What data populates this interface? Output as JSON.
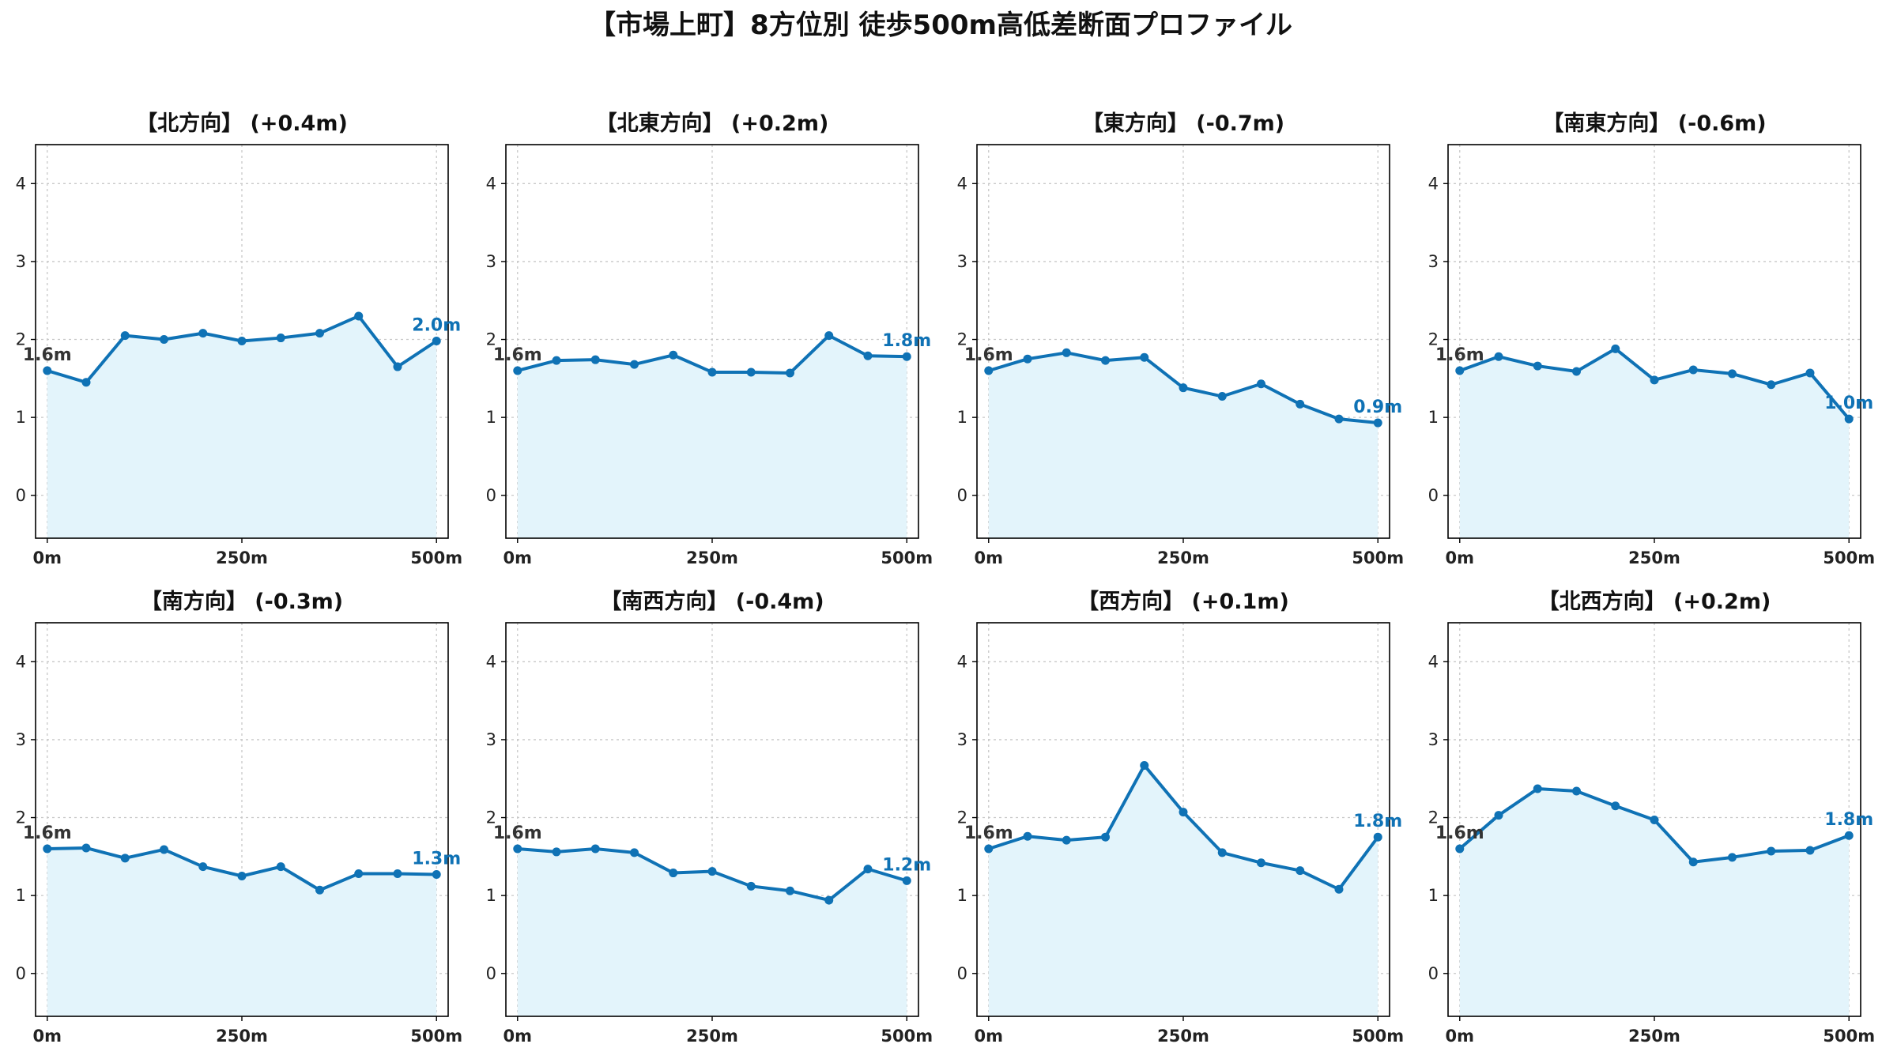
{
  "title": "【市場上町】8方位別 徒歩500m高低差断面プロファイル",
  "colors": {
    "line": "#0f72b5",
    "fill": "#e3f4fb",
    "grid": "#c8c8c8",
    "end_label": "#0f72b5",
    "start_label": "#333333"
  },
  "chart_data": [
    {
      "type": "area",
      "title": "【北方向】 (+0.4m)",
      "x": [
        0,
        50,
        100,
        150,
        200,
        250,
        300,
        350,
        400,
        450,
        500
      ],
      "values": [
        1.6,
        1.45,
        2.05,
        2.0,
        2.08,
        1.98,
        2.02,
        2.08,
        2.3,
        1.65,
        1.98
      ],
      "start_label": "1.6m",
      "end_label": "2.0m",
      "xticks": [
        0,
        250,
        500
      ],
      "xtick_labels": [
        "0m",
        "250m",
        "500m"
      ],
      "yticks": [
        0,
        1,
        2,
        3,
        4
      ],
      "ylim": [
        -0.55,
        4.5
      ],
      "xlim": [
        -15,
        515
      ],
      "grid": true
    },
    {
      "type": "area",
      "title": "【北東方向】 (+0.2m)",
      "x": [
        0,
        50,
        100,
        150,
        200,
        250,
        300,
        350,
        400,
        450,
        500
      ],
      "values": [
        1.6,
        1.73,
        1.74,
        1.68,
        1.8,
        1.58,
        1.58,
        1.57,
        2.05,
        1.79,
        1.78
      ],
      "start_label": "1.6m",
      "end_label": "1.8m",
      "xticks": [
        0,
        250,
        500
      ],
      "xtick_labels": [
        "0m",
        "250m",
        "500m"
      ],
      "yticks": [
        0,
        1,
        2,
        3,
        4
      ],
      "ylim": [
        -0.55,
        4.5
      ],
      "xlim": [
        -15,
        515
      ],
      "grid": true
    },
    {
      "type": "area",
      "title": "【東方向】 (-0.7m)",
      "x": [
        0,
        50,
        100,
        150,
        200,
        250,
        300,
        350,
        400,
        450,
        500
      ],
      "values": [
        1.6,
        1.75,
        1.83,
        1.73,
        1.77,
        1.38,
        1.27,
        1.43,
        1.17,
        0.98,
        0.93
      ],
      "start_label": "1.6m",
      "end_label": "0.9m",
      "xticks": [
        0,
        250,
        500
      ],
      "xtick_labels": [
        "0m",
        "250m",
        "500m"
      ],
      "yticks": [
        0,
        1,
        2,
        3,
        4
      ],
      "ylim": [
        -0.55,
        4.5
      ],
      "xlim": [
        -15,
        515
      ],
      "grid": true
    },
    {
      "type": "area",
      "title": "【南東方向】 (-0.6m)",
      "x": [
        0,
        50,
        100,
        150,
        200,
        250,
        300,
        350,
        400,
        450,
        500
      ],
      "values": [
        1.6,
        1.78,
        1.66,
        1.59,
        1.88,
        1.48,
        1.61,
        1.56,
        1.42,
        1.57,
        0.98
      ],
      "start_label": "1.6m",
      "end_label": "1.0m",
      "xticks": [
        0,
        250,
        500
      ],
      "xtick_labels": [
        "0m",
        "250m",
        "500m"
      ],
      "yticks": [
        0,
        1,
        2,
        3,
        4
      ],
      "ylim": [
        -0.55,
        4.5
      ],
      "xlim": [
        -15,
        515
      ],
      "grid": true
    },
    {
      "type": "area",
      "title": "【南方向】 (-0.3m)",
      "x": [
        0,
        50,
        100,
        150,
        200,
        250,
        300,
        350,
        400,
        450,
        500
      ],
      "values": [
        1.6,
        1.61,
        1.48,
        1.59,
        1.37,
        1.25,
        1.37,
        1.07,
        1.28,
        1.28,
        1.27
      ],
      "start_label": "1.6m",
      "end_label": "1.3m",
      "xticks": [
        0,
        250,
        500
      ],
      "xtick_labels": [
        "0m",
        "250m",
        "500m"
      ],
      "yticks": [
        0,
        1,
        2,
        3,
        4
      ],
      "ylim": [
        -0.55,
        4.5
      ],
      "xlim": [
        -15,
        515
      ],
      "grid": true
    },
    {
      "type": "area",
      "title": "【南西方向】 (-0.4m)",
      "x": [
        0,
        50,
        100,
        150,
        200,
        250,
        300,
        350,
        400,
        450,
        500
      ],
      "values": [
        1.6,
        1.56,
        1.6,
        1.55,
        1.29,
        1.31,
        1.12,
        1.06,
        0.94,
        1.34,
        1.19
      ],
      "start_label": "1.6m",
      "end_label": "1.2m",
      "xticks": [
        0,
        250,
        500
      ],
      "xtick_labels": [
        "0m",
        "250m",
        "500m"
      ],
      "yticks": [
        0,
        1,
        2,
        3,
        4
      ],
      "ylim": [
        -0.55,
        4.5
      ],
      "xlim": [
        -15,
        515
      ],
      "grid": true
    },
    {
      "type": "area",
      "title": "【西方向】 (+0.1m)",
      "x": [
        0,
        50,
        100,
        150,
        200,
        250,
        300,
        350,
        400,
        450,
        500
      ],
      "values": [
        1.6,
        1.76,
        1.71,
        1.75,
        2.67,
        2.07,
        1.55,
        1.42,
        1.32,
        1.08,
        1.75
      ],
      "start_label": "1.6m",
      "end_label": "1.8m",
      "xticks": [
        0,
        250,
        500
      ],
      "xtick_labels": [
        "0m",
        "250m",
        "500m"
      ],
      "yticks": [
        0,
        1,
        2,
        3,
        4
      ],
      "ylim": [
        -0.55,
        4.5
      ],
      "xlim": [
        -15,
        515
      ],
      "grid": true
    },
    {
      "type": "area",
      "title": "【北西方向】 (+0.2m)",
      "x": [
        0,
        50,
        100,
        150,
        200,
        250,
        300,
        350,
        400,
        450,
        500
      ],
      "values": [
        1.6,
        2.03,
        2.37,
        2.34,
        2.15,
        1.97,
        1.43,
        1.49,
        1.57,
        1.58,
        1.77
      ],
      "start_label": "1.6m",
      "end_label": "1.8m",
      "xticks": [
        0,
        250,
        500
      ],
      "xtick_labels": [
        "0m",
        "250m",
        "500m"
      ],
      "yticks": [
        0,
        1,
        2,
        3,
        4
      ],
      "ylim": [
        -0.55,
        4.5
      ],
      "xlim": [
        -15,
        515
      ],
      "grid": true
    }
  ]
}
